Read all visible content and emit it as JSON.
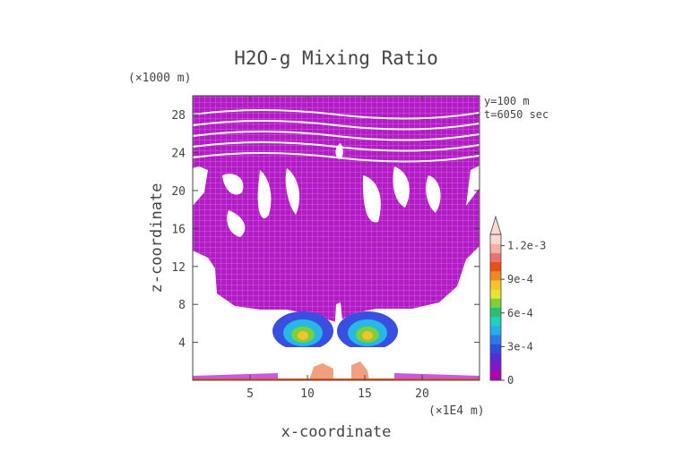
{
  "chart_data": {
    "type": "heatmap",
    "title": "H2O-g Mixing Ratio",
    "xlabel": "x-coordinate",
    "ylabel": "z-coordinate",
    "x_unit": "(×1E4 m)",
    "y_unit": "(×1000 m)",
    "annotations": [
      "y=100 m",
      "t=6050 sec"
    ],
    "xlim": [
      0,
      25
    ],
    "ylim": [
      0,
      30
    ],
    "x_ticks": [
      5,
      10,
      15,
      20
    ],
    "y_ticks": [
      4,
      8,
      12,
      16,
      20,
      24,
      28
    ],
    "colorbar": {
      "ticks": [
        {
          "value": 0,
          "label": "0"
        },
        {
          "value": 0.0003,
          "label": "3e-4"
        },
        {
          "value": 0.0006,
          "label": "6e-4"
        },
        {
          "value": 0.0009,
          "label": "9e-4"
        },
        {
          "value": 0.0012,
          "label": "1.2e-3"
        }
      ],
      "min": 0,
      "max": 0.0013,
      "colors": [
        "#b000b0",
        "#8a12c8",
        "#5a2ad8",
        "#2f4ee0",
        "#2a7be6",
        "#24b0e8",
        "#22d0c0",
        "#28c070",
        "#7ed03a",
        "#e6e630",
        "#f7c22a",
        "#f08a20",
        "#e8501a",
        "#f07070",
        "#f6b0a8",
        "#fbd8d2"
      ],
      "extend": "max"
    },
    "features": [
      {
        "description": "surface layer",
        "x_range": [
          0,
          25
        ],
        "z_range": [
          0,
          0.6
        ],
        "level": "5e-4 to 1.2e-3"
      },
      {
        "description": "moist core",
        "x_range": [
          7.5,
          17.5
        ],
        "z_range": [
          2.5,
          6
        ],
        "level": "up to 9e-4"
      },
      {
        "description": "anvil",
        "x_range": [
          0,
          25
        ],
        "z_range": [
          8,
          30
        ],
        "level": "near 0"
      }
    ]
  }
}
